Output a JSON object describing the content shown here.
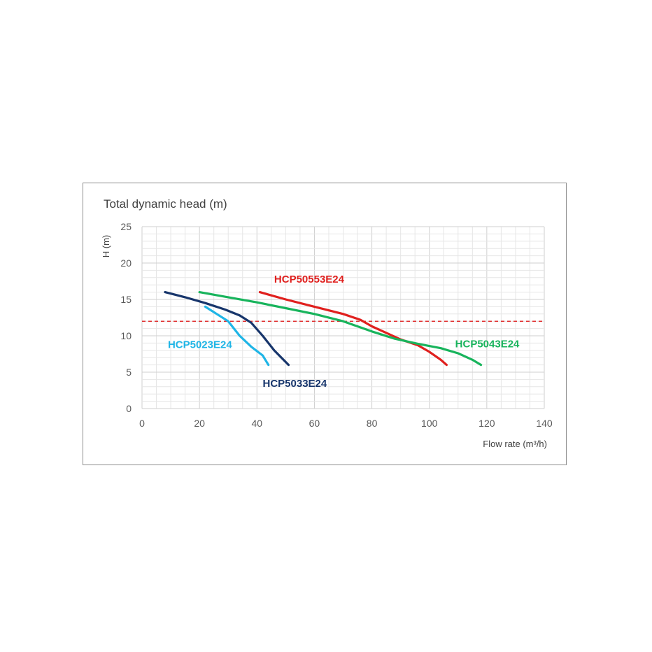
{
  "chart_data": {
    "type": "line",
    "title": "Total dynamic head (m)",
    "xlabel": "Flow rate (m³/h)",
    "ylabel": "H (m)",
    "xlim": [
      0,
      140
    ],
    "ylim": [
      0,
      25
    ],
    "x_ticks": [
      0,
      20,
      40,
      60,
      80,
      100,
      120,
      140
    ],
    "y_ticks": [
      0,
      5,
      10,
      15,
      20,
      25
    ],
    "x_tick_labels": [
      "0",
      "20",
      "40",
      "60",
      "80",
      "100",
      "120",
      "140"
    ],
    "y_tick_labels": [
      "0",
      "5",
      "10",
      "15",
      "20",
      "25"
    ],
    "grid": true,
    "reference_line": {
      "y": 12,
      "color": "#e03030",
      "style": "dashed"
    },
    "series": [
      {
        "name": "HCP5023E24",
        "color": "#1fb5e6",
        "points": [
          [
            22,
            14
          ],
          [
            26,
            13
          ],
          [
            30,
            12
          ],
          [
            34,
            10
          ],
          [
            38,
            8.5
          ],
          [
            42,
            7.3
          ],
          [
            44,
            6
          ]
        ]
      },
      {
        "name": "HCP5033E24",
        "color": "#17356b",
        "points": [
          [
            8,
            16
          ],
          [
            15,
            15.3
          ],
          [
            22,
            14.5
          ],
          [
            29,
            13.6
          ],
          [
            34,
            12.8
          ],
          [
            38,
            11.8
          ],
          [
            42,
            10
          ],
          [
            46,
            8
          ],
          [
            51,
            6
          ]
        ]
      },
      {
        "name": "HCP50553E24",
        "color": "#e0201e",
        "points": [
          [
            41,
            16
          ],
          [
            50,
            15
          ],
          [
            60,
            14
          ],
          [
            70,
            13
          ],
          [
            76,
            12.2
          ],
          [
            80,
            11.3
          ],
          [
            85,
            10.4
          ],
          [
            90,
            9.5
          ],
          [
            96,
            8.7
          ],
          [
            100,
            7.8
          ],
          [
            104,
            6.7
          ],
          [
            106,
            6
          ]
        ]
      },
      {
        "name": "HCP5043E24",
        "color": "#18b45c",
        "points": [
          [
            20,
            16
          ],
          [
            30,
            15.3
          ],
          [
            40,
            14.6
          ],
          [
            50,
            13.8
          ],
          [
            60,
            13
          ],
          [
            70,
            12
          ],
          [
            80,
            10.6
          ],
          [
            88,
            9.6
          ],
          [
            96,
            8.9
          ],
          [
            104,
            8.3
          ],
          [
            110,
            7.6
          ],
          [
            115,
            6.7
          ],
          [
            118,
            6
          ]
        ]
      }
    ]
  }
}
